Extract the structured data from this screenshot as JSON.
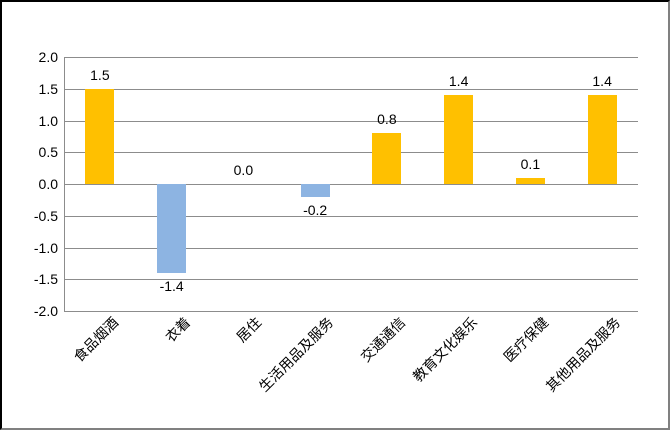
{
  "chart_data": {
    "type": "bar",
    "title": "",
    "xlabel": "",
    "ylabel": "",
    "categories": [
      "食品烟酒",
      "衣着",
      "居住",
      "生活用品及服务",
      "交通通信",
      "教育文化娱乐",
      "医疗保健",
      "其他用品及服务"
    ],
    "values": [
      1.5,
      -1.4,
      0.0,
      -0.2,
      0.8,
      1.4,
      0.1,
      1.4
    ],
    "data_labels": [
      "1.5",
      "-1.4",
      "0.0",
      "-0.2",
      "0.8",
      "1.4",
      "0.1",
      "1.4"
    ],
    "ylim": [
      -2.0,
      2.0
    ],
    "ytick_step": 0.5,
    "ytick_labels": [
      "2.0",
      "1.5",
      "1.0",
      "0.5",
      "0.0",
      "-0.5",
      "-1.0",
      "-1.5",
      "-2.0"
    ],
    "grid": true,
    "legend": false,
    "category_label_rotation_deg": 45,
    "colors": {
      "positive_bar": "#FFC000",
      "negative_bar": "#8DB4E2",
      "gridline": "#8C8C8C",
      "axis_line": "#8C8C8C",
      "text": "#000000",
      "background": "#FFFFFF",
      "frame_border_top_left": "#000000",
      "frame_border_bottom_right": "#808080"
    }
  }
}
